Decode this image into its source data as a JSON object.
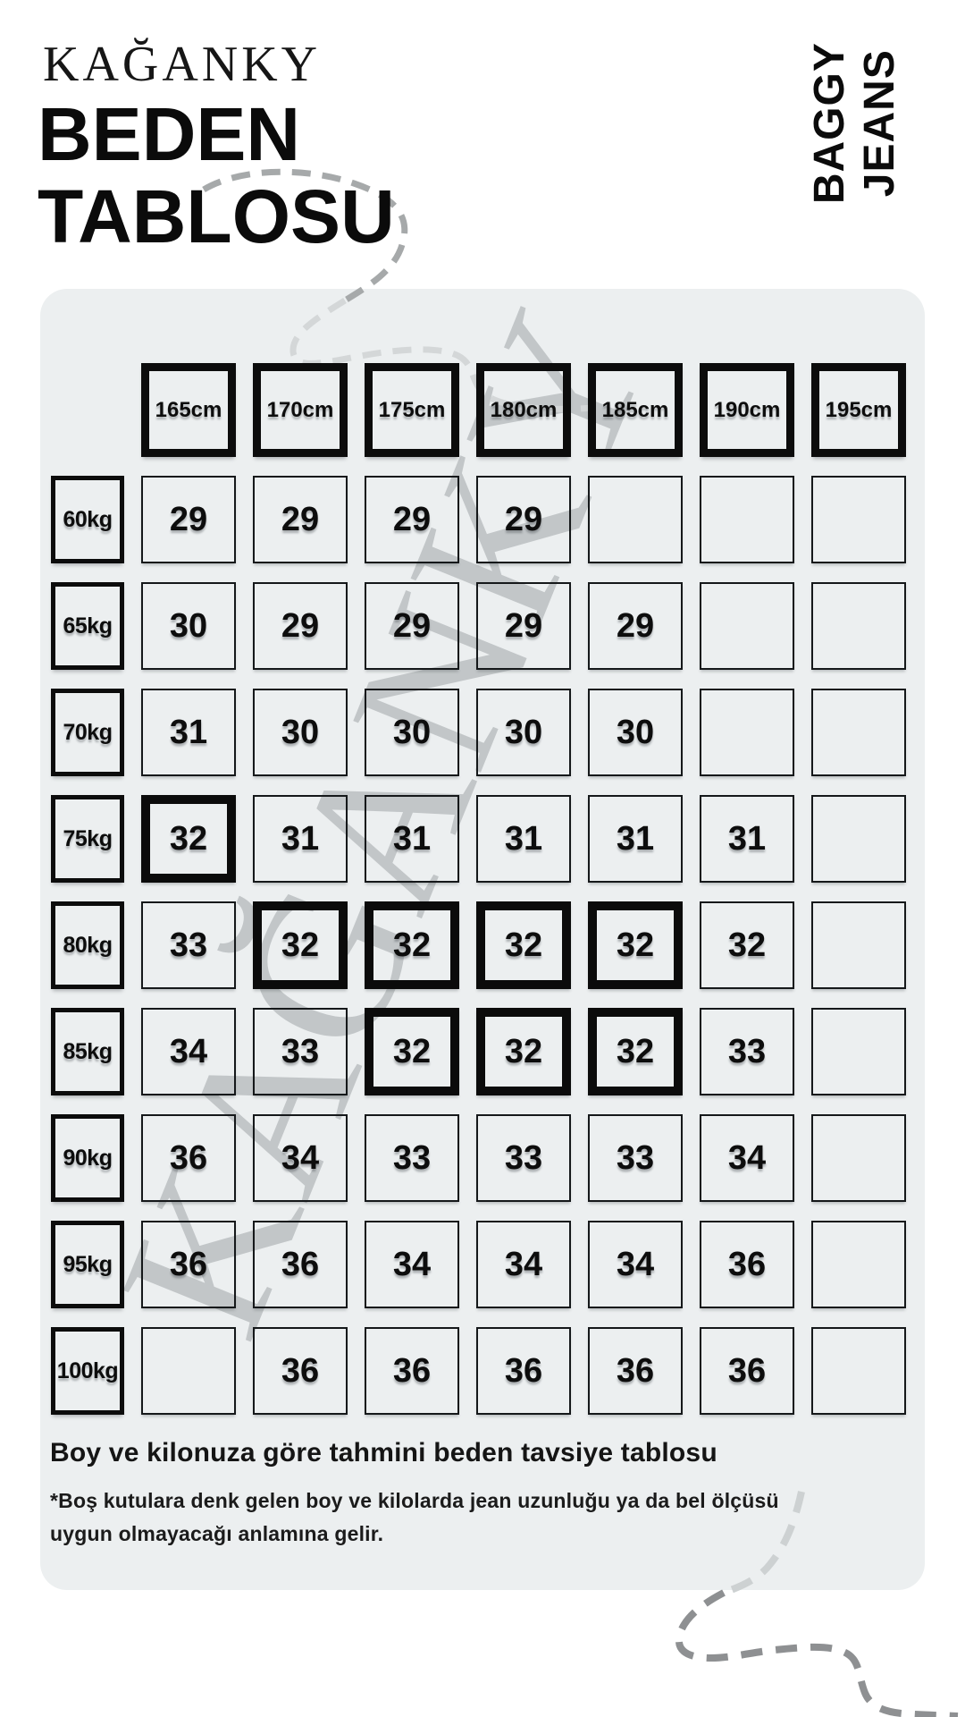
{
  "brand": {
    "logo": "KAĞANKY",
    "watermark": "KAĞANKY"
  },
  "header": {
    "title_line1": "BEDEN",
    "title_line2": "TABLOSU",
    "side_label_line1": "BAGGY",
    "side_label_line2": "JEANS"
  },
  "table": {
    "height_headers": [
      "165cm",
      "170cm",
      "175cm",
      "180cm",
      "185cm",
      "190cm",
      "195cm"
    ],
    "weight_labels": [
      "60kg",
      "65kg",
      "70kg",
      "75kg",
      "80kg",
      "85kg",
      "90kg",
      "95kg",
      "100kg"
    ],
    "rows": [
      {
        "weight": "60kg",
        "sizes": [
          "29",
          "29",
          "29",
          "29",
          "",
          "",
          ""
        ],
        "highlight": [
          false,
          false,
          false,
          false,
          false,
          false,
          false
        ]
      },
      {
        "weight": "65kg",
        "sizes": [
          "30",
          "29",
          "29",
          "29",
          "29",
          "",
          ""
        ],
        "highlight": [
          false,
          false,
          false,
          false,
          false,
          false,
          false
        ]
      },
      {
        "weight": "70kg",
        "sizes": [
          "31",
          "30",
          "30",
          "30",
          "30",
          "",
          ""
        ],
        "highlight": [
          false,
          false,
          false,
          false,
          false,
          false,
          false
        ]
      },
      {
        "weight": "75kg",
        "sizes": [
          "32",
          "31",
          "31",
          "31",
          "31",
          "31",
          ""
        ],
        "highlight": [
          true,
          false,
          false,
          false,
          false,
          false,
          false
        ]
      },
      {
        "weight": "80kg",
        "sizes": [
          "33",
          "32",
          "32",
          "32",
          "32",
          "32",
          ""
        ],
        "highlight": [
          false,
          true,
          true,
          true,
          true,
          false,
          false
        ]
      },
      {
        "weight": "85kg",
        "sizes": [
          "34",
          "33",
          "32",
          "32",
          "32",
          "33",
          ""
        ],
        "highlight": [
          false,
          false,
          true,
          true,
          true,
          false,
          false
        ]
      },
      {
        "weight": "90kg",
        "sizes": [
          "36",
          "34",
          "33",
          "33",
          "33",
          "34",
          ""
        ],
        "highlight": [
          false,
          false,
          false,
          false,
          false,
          false,
          false
        ]
      },
      {
        "weight": "95kg",
        "sizes": [
          "36",
          "36",
          "34",
          "34",
          "34",
          "36",
          ""
        ],
        "highlight": [
          false,
          false,
          false,
          false,
          false,
          false,
          false
        ]
      },
      {
        "weight": "100kg",
        "sizes": [
          "",
          "36",
          "36",
          "36",
          "36",
          "36",
          ""
        ],
        "highlight": [
          false,
          false,
          false,
          false,
          false,
          false,
          false
        ]
      }
    ]
  },
  "footer": {
    "caption": "Boy ve kilonuza göre tahmini beden tavsiye tablosu",
    "note": "*Boş kutulara denk gelen boy ve kilolarda jean uzunluğu ya da bel ölçüsü\nuygun olmayacağı anlamına gelir."
  },
  "colors": {
    "panel_bg": "#ECEFF0",
    "box_border": "#0c0c0c",
    "text": "#0d0d0d",
    "watermark": "#C2C6C8",
    "dash_dark_top": "#A6A9AA",
    "dash_light_on_panel": "#D4D7D8",
    "dash_dark_bottom": "#8E9092"
  }
}
